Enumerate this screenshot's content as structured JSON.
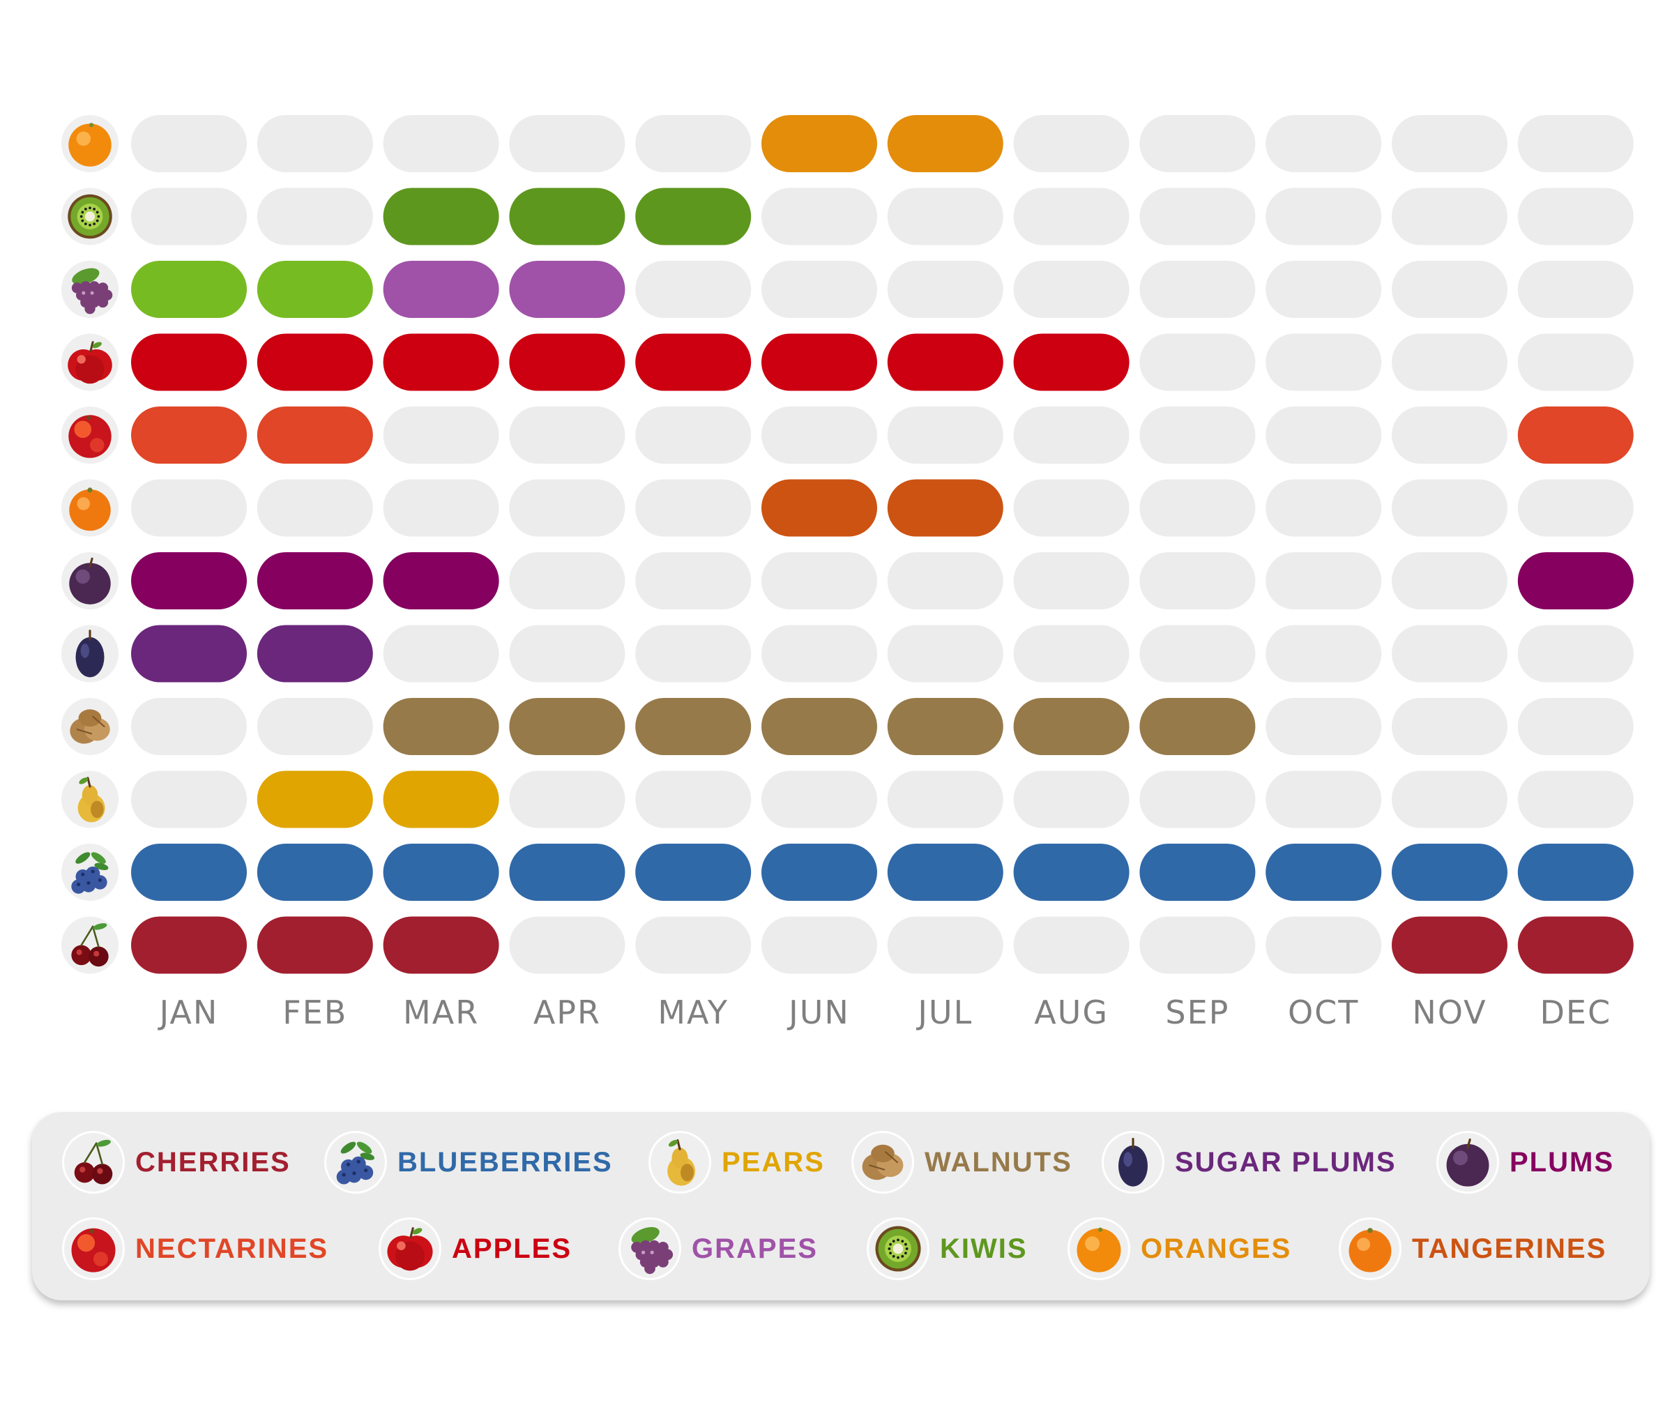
{
  "chart_data": {
    "type": "heatmap",
    "title": "",
    "xlabel": "",
    "ylabel": "",
    "months": [
      "JAN",
      "FEB",
      "MAR",
      "APR",
      "MAY",
      "JUN",
      "JUL",
      "AUG",
      "SEP",
      "OCT",
      "NOV",
      "DEC"
    ],
    "inactive_color": "#ececec",
    "rows": [
      {
        "icon": "orange-icon",
        "active": [
          [
            6,
            "#e38d0b"
          ],
          [
            7,
            "#e38d0b"
          ]
        ]
      },
      {
        "icon": "kiwi-icon",
        "active": [
          [
            3,
            "#5e971e"
          ],
          [
            4,
            "#5e971e"
          ],
          [
            5,
            "#5e971e"
          ]
        ]
      },
      {
        "icon": "grapes-icon",
        "active": [
          [
            1,
            "#77bb22"
          ],
          [
            2,
            "#77bb22"
          ],
          [
            3,
            "#a052a8"
          ],
          [
            4,
            "#a052a8"
          ]
        ]
      },
      {
        "icon": "apple-icon",
        "active": [
          [
            1,
            "#cc0011"
          ],
          [
            2,
            "#cc0011"
          ],
          [
            3,
            "#cc0011"
          ],
          [
            4,
            "#cc0011"
          ],
          [
            5,
            "#cc0011"
          ],
          [
            6,
            "#cc0011"
          ],
          [
            7,
            "#cc0011"
          ],
          [
            8,
            "#cc0011"
          ]
        ]
      },
      {
        "icon": "nectarine-icon",
        "active": [
          [
            1,
            "#e04627"
          ],
          [
            2,
            "#e04627"
          ],
          [
            12,
            "#e04627"
          ]
        ]
      },
      {
        "icon": "tangerine-icon",
        "active": [
          [
            6,
            "#cc5312"
          ],
          [
            7,
            "#cc5312"
          ]
        ]
      },
      {
        "icon": "plum-icon",
        "active": [
          [
            1,
            "#860060"
          ],
          [
            2,
            "#860060"
          ],
          [
            3,
            "#860060"
          ],
          [
            12,
            "#860060"
          ]
        ]
      },
      {
        "icon": "sugar-plum-icon",
        "active": [
          [
            1,
            "#6b277c"
          ],
          [
            2,
            "#6b277c"
          ]
        ]
      },
      {
        "icon": "walnut-icon",
        "active": [
          [
            3,
            "#977a4a"
          ],
          [
            4,
            "#977a4a"
          ],
          [
            5,
            "#977a4a"
          ],
          [
            6,
            "#977a4a"
          ],
          [
            7,
            "#977a4a"
          ],
          [
            8,
            "#977a4a"
          ],
          [
            9,
            "#977a4a"
          ]
        ]
      },
      {
        "icon": "pear-icon",
        "active": [
          [
            2,
            "#e0a500"
          ],
          [
            3,
            "#e0a500"
          ]
        ]
      },
      {
        "icon": "blueberry-icon",
        "active": [
          [
            1,
            "#3069a8"
          ],
          [
            2,
            "#3069a8"
          ],
          [
            3,
            "#3069a8"
          ],
          [
            4,
            "#3069a8"
          ],
          [
            5,
            "#3069a8"
          ],
          [
            6,
            "#3069a8"
          ],
          [
            7,
            "#3069a8"
          ],
          [
            8,
            "#3069a8"
          ],
          [
            9,
            "#3069a8"
          ],
          [
            10,
            "#3069a8"
          ],
          [
            11,
            "#3069a8"
          ],
          [
            12,
            "#3069a8"
          ]
        ]
      },
      {
        "icon": "cherry-icon",
        "active": [
          [
            1,
            "#a21f2f"
          ],
          [
            2,
            "#a21f2f"
          ],
          [
            3,
            "#a21f2f"
          ],
          [
            11,
            "#a21f2f"
          ],
          [
            12,
            "#a21f2f"
          ]
        ]
      }
    ],
    "legend": [
      {
        "label": "CHERRIES",
        "color": "#a21f2f",
        "icon": "cherry-icon"
      },
      {
        "label": "BLUEBERRIES",
        "color": "#3069a8",
        "icon": "blueberry-icon"
      },
      {
        "label": "PEARS",
        "color": "#e0a500",
        "icon": "pear-icon"
      },
      {
        "label": "WALNUTS",
        "color": "#977a4a",
        "icon": "walnut-icon"
      },
      {
        "label": "SUGAR PLUMS",
        "color": "#6b277c",
        "icon": "sugar-plum-icon"
      },
      {
        "label": "PLUMS",
        "color": "#860060",
        "icon": "plum-icon"
      },
      {
        "label": "NECTARINES",
        "color": "#e04627",
        "icon": "nectarine-icon"
      },
      {
        "label": "APPLES",
        "color": "#cc0011",
        "icon": "apple-icon"
      },
      {
        "label": "GRAPES",
        "color": "#a052a8",
        "icon": "grapes-icon"
      },
      {
        "label": "KIWIS",
        "color": "#5e971e",
        "icon": "kiwi-icon"
      },
      {
        "label": "ORANGES",
        "color": "#e38d0b",
        "icon": "orange-icon"
      },
      {
        "label": "TANGERINES",
        "color": "#cc5312",
        "icon": "tangerine-icon"
      }
    ]
  }
}
